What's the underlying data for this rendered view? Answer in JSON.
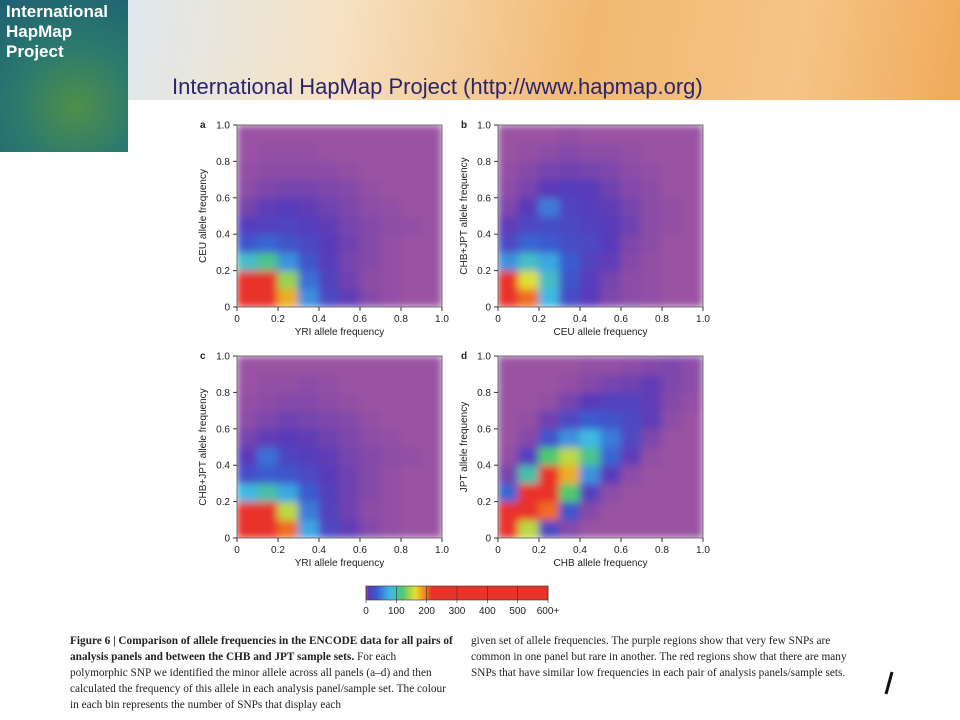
{
  "header": {
    "logo_text": [
      "International",
      "HapMap",
      "Project"
    ],
    "title": "International HapMap Project (http://www.hapmap.org)"
  },
  "chart_data": [
    {
      "type": "heatmap",
      "label": "a",
      "x_label": "YRI allele frequency",
      "y_label": "CEU allele frequency",
      "xlim": [
        0,
        1
      ],
      "ylim": [
        0,
        1
      ],
      "xticks": [
        0,
        0.2,
        0.4,
        0.6,
        0.8,
        {
          "value": 1,
          "label": "1.0"
        }
      ],
      "yticks": [
        0,
        0.2,
        0.4,
        0.6,
        0.8,
        {
          "value": 1,
          "label": "1.0"
        }
      ],
      "xbins": [
        0,
        0.1,
        0.2,
        0.3,
        0.4,
        0.5,
        0.6,
        0.7,
        0.8,
        0.9,
        1
      ],
      "ybins": [
        0,
        0.1,
        0.2,
        0.3,
        0.4,
        0.5,
        0.6,
        0.7,
        0.8,
        0.9,
        1
      ],
      "z": [
        [
          650,
          420,
          180,
          60,
          20,
          8,
          3,
          1,
          0,
          0
        ],
        [
          300,
          220,
          140,
          45,
          15,
          6,
          2,
          1,
          0,
          0
        ],
        [
          90,
          110,
          60,
          30,
          12,
          5,
          3,
          1,
          0,
          0
        ],
        [
          30,
          40,
          30,
          20,
          10,
          6,
          3,
          1,
          0,
          0
        ],
        [
          12,
          15,
          18,
          12,
          8,
          5,
          3,
          2,
          1,
          0
        ],
        [
          5,
          8,
          10,
          8,
          6,
          4,
          2,
          1,
          0,
          0
        ],
        [
          2,
          4,
          5,
          5,
          4,
          3,
          1,
          0,
          0,
          0
        ],
        [
          1,
          2,
          2,
          2,
          2,
          1,
          0,
          0,
          0,
          0
        ],
        [
          0,
          1,
          1,
          1,
          0,
          0,
          0,
          0,
          0,
          0
        ],
        [
          0,
          0,
          0,
          0,
          0,
          0,
          0,
          0,
          0,
          0
        ]
      ]
    },
    {
      "type": "heatmap",
      "label": "b",
      "x_label": "CEU allele frequency",
      "y_label": "CHB+JPT allele frequency",
      "xlim": [
        0,
        1
      ],
      "ylim": [
        0,
        1
      ],
      "xticks": [
        0,
        0.2,
        0.4,
        0.6,
        0.8,
        {
          "value": 1,
          "label": "1.0"
        }
      ],
      "yticks": [
        0,
        0.2,
        0.4,
        0.6,
        0.8,
        {
          "value": 1,
          "label": "1.0"
        }
      ],
      "xbins": [
        0,
        0.1,
        0.2,
        0.3,
        0.4,
        0.5,
        0.6,
        0.7,
        0.8,
        0.9,
        1
      ],
      "ybins": [
        0,
        0.1,
        0.2,
        0.3,
        0.4,
        0.5,
        0.6,
        0.7,
        0.8,
        0.9,
        1
      ],
      "z": [
        [
          650,
          200,
          80,
          25,
          10,
          4,
          2,
          1,
          0,
          0
        ],
        [
          250,
          160,
          90,
          30,
          12,
          5,
          2,
          1,
          0,
          0
        ],
        [
          60,
          90,
          70,
          35,
          15,
          8,
          3,
          1,
          0,
          0
        ],
        [
          20,
          40,
          35,
          25,
          20,
          10,
          4,
          2,
          0,
          0
        ],
        [
          8,
          20,
          25,
          20,
          15,
          10,
          6,
          2,
          1,
          0
        ],
        [
          4,
          10,
          50,
          18,
          12,
          8,
          5,
          2,
          1,
          0
        ],
        [
          2,
          5,
          10,
          12,
          10,
          6,
          3,
          2,
          0,
          0
        ],
        [
          1,
          3,
          5,
          6,
          5,
          4,
          2,
          1,
          0,
          0
        ],
        [
          0,
          1,
          2,
          3,
          2,
          2,
          1,
          0,
          0,
          0
        ],
        [
          0,
          0,
          0,
          1,
          0,
          0,
          0,
          0,
          0,
          0
        ]
      ]
    },
    {
      "type": "heatmap",
      "label": "c",
      "x_label": "YRI allele frequency",
      "y_label": "CHB+JPT allele frequency",
      "xlim": [
        0,
        1
      ],
      "ylim": [
        0,
        1
      ],
      "xticks": [
        0,
        0.2,
        0.4,
        0.6,
        0.8,
        {
          "value": 1,
          "label": "1.0"
        }
      ],
      "yticks": [
        0,
        0.2,
        0.4,
        0.6,
        0.8,
        {
          "value": 1,
          "label": "1.0"
        }
      ],
      "xbins": [
        0,
        0.1,
        0.2,
        0.3,
        0.4,
        0.5,
        0.6,
        0.7,
        0.8,
        0.9,
        1
      ],
      "ybins": [
        0,
        0.1,
        0.2,
        0.3,
        0.4,
        0.5,
        0.6,
        0.7,
        0.8,
        0.9,
        1
      ],
      "z": [
        [
          650,
          450,
          200,
          70,
          20,
          8,
          3,
          1,
          0,
          0
        ],
        [
          350,
          250,
          150,
          50,
          15,
          6,
          2,
          1,
          0,
          0
        ],
        [
          80,
          100,
          70,
          35,
          14,
          6,
          3,
          1,
          0,
          0
        ],
        [
          25,
          35,
          30,
          20,
          10,
          6,
          3,
          1,
          0,
          0
        ],
        [
          10,
          45,
          18,
          12,
          8,
          5,
          3,
          2,
          1,
          0
        ],
        [
          5,
          8,
          10,
          8,
          6,
          4,
          2,
          1,
          0,
          0
        ],
        [
          2,
          4,
          6,
          5,
          4,
          3,
          1,
          0,
          0,
          0
        ],
        [
          1,
          2,
          3,
          3,
          2,
          1,
          0,
          0,
          0,
          0
        ],
        [
          0,
          1,
          1,
          2,
          1,
          0,
          0,
          0,
          0,
          0
        ],
        [
          0,
          0,
          0,
          0,
          0,
          0,
          0,
          0,
          0,
          0
        ]
      ]
    },
    {
      "type": "heatmap",
      "label": "d",
      "x_label": "CHB allele frequency",
      "y_label": "JPT allele frequency",
      "xlim": [
        0,
        1
      ],
      "ylim": [
        0,
        1
      ],
      "xticks": [
        0,
        0.2,
        0.4,
        0.6,
        0.8,
        {
          "value": 1,
          "label": "1.0"
        }
      ],
      "yticks": [
        0,
        0.2,
        0.4,
        0.6,
        0.8,
        {
          "value": 1,
          "label": "1.0"
        }
      ],
      "xbins": [
        0,
        0.1,
        0.2,
        0.3,
        0.4,
        0.5,
        0.6,
        0.7,
        0.8,
        0.9,
        1
      ],
      "ybins": [
        0,
        0.1,
        0.2,
        0.3,
        0.4,
        0.5,
        0.6,
        0.7,
        0.8,
        0.9,
        1
      ],
      "z": [
        [
          500,
          150,
          20,
          3,
          0,
          0,
          0,
          0,
          0,
          0
        ],
        [
          300,
          550,
          200,
          30,
          3,
          0,
          0,
          0,
          0,
          0
        ],
        [
          40,
          450,
          600,
          120,
          15,
          2,
          0,
          0,
          0,
          0
        ],
        [
          5,
          100,
          350,
          180,
          60,
          10,
          2,
          0,
          0,
          0
        ],
        [
          1,
          15,
          120,
          150,
          110,
          40,
          8,
          1,
          0,
          0
        ],
        [
          0,
          3,
          30,
          60,
          80,
          50,
          20,
          4,
          0,
          0
        ],
        [
          0,
          1,
          6,
          20,
          35,
          30,
          20,
          8,
          2,
          0
        ],
        [
          0,
          0,
          1,
          5,
          10,
          15,
          15,
          8,
          3,
          1
        ],
        [
          0,
          0,
          0,
          1,
          3,
          5,
          6,
          8,
          4,
          2
        ],
        [
          0,
          0,
          0,
          0,
          1,
          1,
          2,
          3,
          4,
          2
        ]
      ]
    }
  ],
  "colorbar": {
    "zlim": [
      0,
      600
    ],
    "zticks": [
      0,
      100,
      200,
      300,
      400,
      500,
      {
        "value": 600,
        "label": "600+"
      }
    ]
  },
  "caption": {
    "bold": "Figure 6 | Comparison of allele frequencies in the ENCODE data for all pairs of analysis panels and between the CHB and JPT sample sets.",
    "text_left": "For each polymorphic SNP we identified the minor allele across all panels (a–d) and then calculated the frequency of this allele in each analysis panel/sample set. The colour in each bin represents the number of SNPs that display each",
    "text_right": "given set of allele frequencies. The purple regions show that very few SNPs are common in one panel but rare in another. The red regions show that there are many SNPs that have similar low frequencies in each pair of analysis panels/sample sets."
  }
}
